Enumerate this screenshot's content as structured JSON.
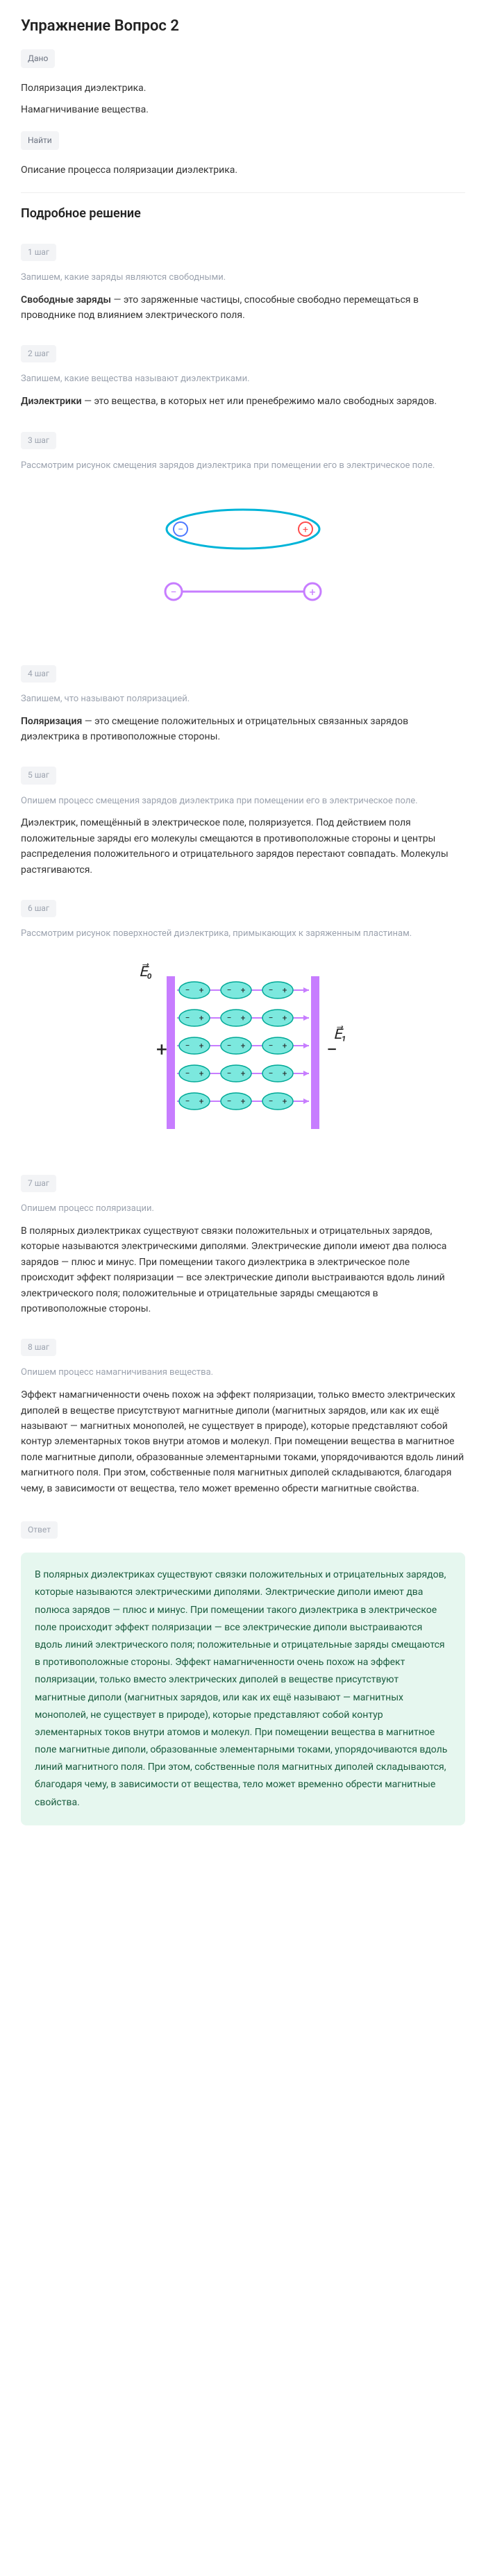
{
  "title": "Упражнение Вопрос 2",
  "given": {
    "label": "Дано",
    "lines": [
      "Поляризация диэлектрика.",
      "Намагничивание вещества."
    ]
  },
  "find": {
    "label": "Найти",
    "text": "Описание процесса поляризации диэлектрика."
  },
  "detailedTitle": "Подробное решение",
  "steps": [
    {
      "badge": "1 шаг",
      "note": "Запишем, какие заряды являются свободными.",
      "content": "Свободные заряды — это заряженные частицы, способные свободно перемещаться в проводнике под влиянием электрического поля.",
      "boldPrefix": "Свободные заряды"
    },
    {
      "badge": "2 шаг",
      "note": "Запишем, какие вещества называют диэлектриками.",
      "content": "Диэлектрики — это вещества, в которых нет или пренебрежимо мало свободных зарядов.",
      "boldPrefix": "Диэлектрики"
    },
    {
      "badge": "3 шаг",
      "note": "Рассмотрим рисунок смещения зарядов диэлектрика при помещении его в электрическое поле.",
      "content": "",
      "hasDiagram": 1
    },
    {
      "badge": "4 шаг",
      "note": "Запишем, что называют поляризацией.",
      "content": "Поляризация — это смещение положительных и отрицательных связанных зарядов диэлектрика в противоположные стороны.",
      "boldPrefix": "Поляризация"
    },
    {
      "badge": "5 шаг",
      "note": "Опишем процесс смещения зарядов диэлектрика при помещении его в электрическое поле.",
      "content": "Диэлектрик, помещённый в электрическое поле, поляризуется. Под действием поля положительные заряды его молекулы смещаются в противоположные стороны и центры распределения положительного и отрицательного зарядов перестают совпадать. Молекулы растягиваются."
    },
    {
      "badge": "6 шаг",
      "note": "Рассмотрим рисунок поверхностей диэлектрика, примыкающих к заряженным пластинам.",
      "content": "",
      "hasDiagram": 2
    },
    {
      "badge": "7 шаг",
      "note": "Опишем процесс поляризации.",
      "content": "В полярных диэлектриках существуют связки положительных и отрицательных зарядов, которые называются электрическими диполями. Электрические диполи имеют два полюса зарядов — плюс и минус. При помещении такого диэлектрика в электрическое поле происходит эффект поляризации — все электрические диполи выстраиваются вдоль линий электрического поля; положительные и отрицательные заряды смещаются в противоположные стороны."
    },
    {
      "badge": "8 шаг",
      "note": "Опишем процесс намагничивания вещества.",
      "content": "Эффект намагниченности очень похож на эффект поляризации, только вместо электрических диполей в веществе присутствуют магнитные диполи (магнитных зарядов, или как их ещё называют — магнитных монополей, не существует в природе), которые представляют собой контур элементарных токов внутри атомов и молекул. При помещении вещества в магнитное поле магнитные диполи, образованные элементарными токами, упорядочиваются вдоль линий магнитного поля. При этом, собственные поля магнитных диполей складываются, благодаря чему, в зависимости от вещества, тело может временно обрести магнитные свойства."
    }
  ],
  "answer": {
    "label": "Ответ",
    "text": "В полярных диэлектриках существуют связки положительных и отрицательных зарядов, которые называются электрическими диполями. Электрические диполи имеют два полюса зарядов — плюс и минус. При помещении такого диэлектрика в электрическое поле происходит эффект поляризации — все электрические диполи выстраиваются вдоль линий электрического поля; положительные и отрицательные заряды смещаются в противоположные стороны. Эффект намагниченности очень похож на эффект поляризации, только вместо электрических диполей в веществе присутствуют магнитные диполи (магнитных зарядов, или как их ещё называют — магнитных монополей, не существует в природе), которые представляют собой контур элементарных токов внутри атомов и молекул. При помещении вещества в магнитное поле магнитные диполи, образованные элементарными токами, упорядочиваются вдоль линий магнитного поля. При этом, собственные поля магнитных диполей складываются, благодаря чему, в зависимости от вещества, тело может временно обрести магнитные свойства."
  },
  "diagram1": {
    "ellipse1_stroke": "#00b4d8",
    "ellipse2_stroke": "#c77dff",
    "plus_color": "#ff4d4d",
    "minus_color": "#4d79ff"
  },
  "diagram2": {
    "plate_color": "#c77dff",
    "dipole_fill": "#7ce8de",
    "dipole_stroke": "#00a896",
    "field_color": "#c77dff",
    "plus": "+",
    "minus": "−",
    "e0": "E⃗₀",
    "e1": "E⃗₁"
  }
}
